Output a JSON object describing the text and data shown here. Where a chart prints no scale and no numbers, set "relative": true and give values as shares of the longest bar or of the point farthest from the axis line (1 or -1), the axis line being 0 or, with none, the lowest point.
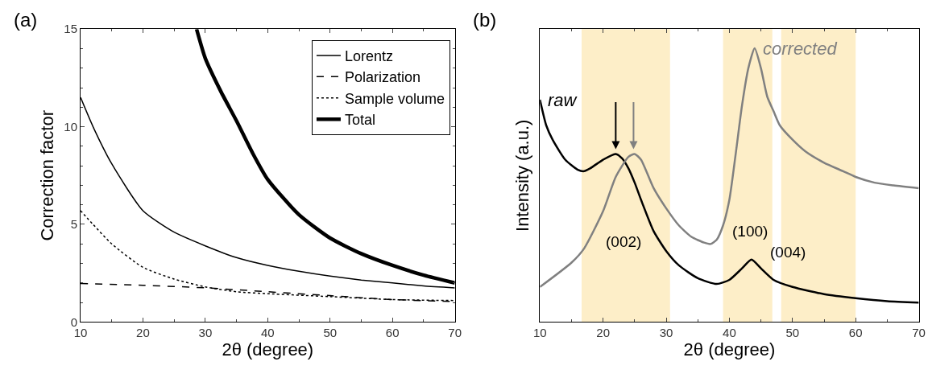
{
  "chart_data": [
    {
      "type": "line",
      "xlabel": "2θ (degree)",
      "ylabel": "Correction factor",
      "annotations": [
        "(a)"
      ],
      "xlim": [
        10,
        70
      ],
      "ylim": [
        0,
        15
      ],
      "xticks": [
        10,
        20,
        30,
        40,
        50,
        60,
        70
      ],
      "yticks": [
        0,
        5,
        10,
        15
      ],
      "grid": false,
      "legend": "top right",
      "marker": "none",
      "series": [
        {
          "name": "Lorentz",
          "color": "#000000",
          "line_style": "solid",
          "x": [
            10,
            12,
            15,
            20,
            25,
            30,
            35,
            40,
            45,
            50,
            55,
            60,
            65,
            70
          ],
          "values": [
            11.5,
            10.0,
            8.1,
            5.7,
            4.6,
            3.9,
            3.3,
            2.9,
            2.6,
            2.35,
            2.15,
            2.0,
            1.85,
            1.75
          ]
        },
        {
          "name": "Polarization",
          "color": "#000000",
          "line_style": "dashed",
          "x": [
            10,
            20,
            30,
            40,
            50,
            60,
            70
          ],
          "values": [
            1.97,
            1.88,
            1.75,
            1.55,
            1.35,
            1.15,
            1.05
          ]
        },
        {
          "name": "Sample volume",
          "color": "#000000",
          "line_style": "dotted",
          "x": [
            10,
            12,
            15,
            20,
            25,
            30,
            35,
            40,
            50,
            60,
            70
          ],
          "values": [
            5.7,
            5.0,
            4.0,
            2.8,
            2.2,
            1.8,
            1.55,
            1.45,
            1.3,
            1.15,
            1.1
          ]
        },
        {
          "name": "Total",
          "color": "#000000",
          "line_style": "solid",
          "x": [
            28.6,
            30,
            32.5,
            35,
            37.5,
            40,
            45,
            50,
            55,
            60,
            65,
            70
          ],
          "values": [
            15,
            13.5,
            11.8,
            10.3,
            8.7,
            7.3,
            5.5,
            4.3,
            3.5,
            2.9,
            2.4,
            2.0
          ]
        }
      ]
    },
    {
      "type": "line",
      "relative": true,
      "xlabel": "2θ (degree)",
      "ylabel": "Intensity (a.u.)",
      "xlim": [
        10,
        70
      ],
      "xticks": [
        10,
        20,
        30,
        40,
        50,
        60,
        70
      ],
      "grid": false,
      "legend": false,
      "marker": "none",
      "line_style": "solid",
      "annotations": [
        "(b)",
        "(002)",
        "(100)",
        "(004)"
      ],
      "bands": [
        {
          "axis": "x",
          "from": 16.6,
          "to": 30.6,
          "color": "#fdeec8"
        },
        {
          "axis": "x",
          "from": 39,
          "to": 46.8,
          "color": "#fdeec8"
        },
        {
          "axis": "x",
          "from": 48.2,
          "to": 60,
          "color": "#fdeec8"
        }
      ],
      "series": [
        {
          "name": "raw",
          "color": "#000000",
          "x": [
            10,
            11,
            12,
            14,
            16,
            17,
            18,
            20,
            22,
            23,
            24,
            25,
            26,
            28,
            30,
            32,
            35,
            38,
            40,
            42,
            43.5,
            45,
            47,
            50,
            55,
            60,
            65,
            70
          ],
          "values": [
            0.812,
            0.718,
            0.666,
            0.593,
            0.556,
            0.551,
            0.562,
            0.593,
            0.614,
            0.598,
            0.562,
            0.509,
            0.447,
            0.332,
            0.259,
            0.207,
            0.16,
            0.139,
            0.154,
            0.196,
            0.228,
            0.196,
            0.154,
            0.128,
            0.102,
            0.087,
            0.076,
            0.071
          ]
        },
        {
          "name": "corrected",
          "color": "#808080",
          "x": [
            10,
            15,
            17,
            20,
            22,
            24,
            25,
            26,
            28,
            30,
            32,
            34,
            36,
            37,
            38,
            39,
            40,
            41,
            42,
            43,
            44,
            45,
            46,
            47,
            48,
            50,
            52,
            55,
            58,
            60,
            63,
            66,
            70
          ],
          "values": [
            0.128,
            0.217,
            0.269,
            0.405,
            0.53,
            0.603,
            0.614,
            0.593,
            0.489,
            0.415,
            0.353,
            0.311,
            0.29,
            0.285,
            0.301,
            0.353,
            0.447,
            0.614,
            0.791,
            0.927,
            1.0,
            0.927,
            0.823,
            0.77,
            0.718,
            0.666,
            0.624,
            0.582,
            0.551,
            0.53,
            0.509,
            0.499,
            0.489
          ]
        }
      ]
    }
  ]
}
